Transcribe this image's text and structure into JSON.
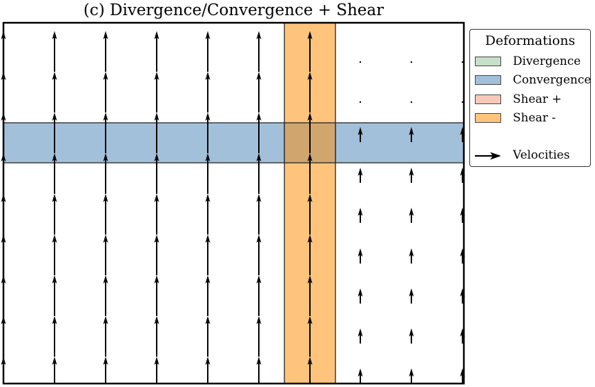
{
  "title": "(c) Divergence/Convergence + Shear",
  "legend": {
    "title": "Deformations",
    "items": [
      {
        "label": "Divergence",
        "color": "#c6dfc8"
      },
      {
        "label": "Convergence",
        "color": "#a2c0da"
      },
      {
        "label": "Shear +",
        "color": "#f8c9b8"
      },
      {
        "label": "Shear -",
        "color": "#ffc47c"
      }
    ],
    "velocities_label": "Velocities"
  },
  "colors": {
    "convergence_band": "#a2c0da",
    "shear_band": "#ffc47c",
    "overlap": "#d0a56e",
    "arrow": "#000000"
  }
}
